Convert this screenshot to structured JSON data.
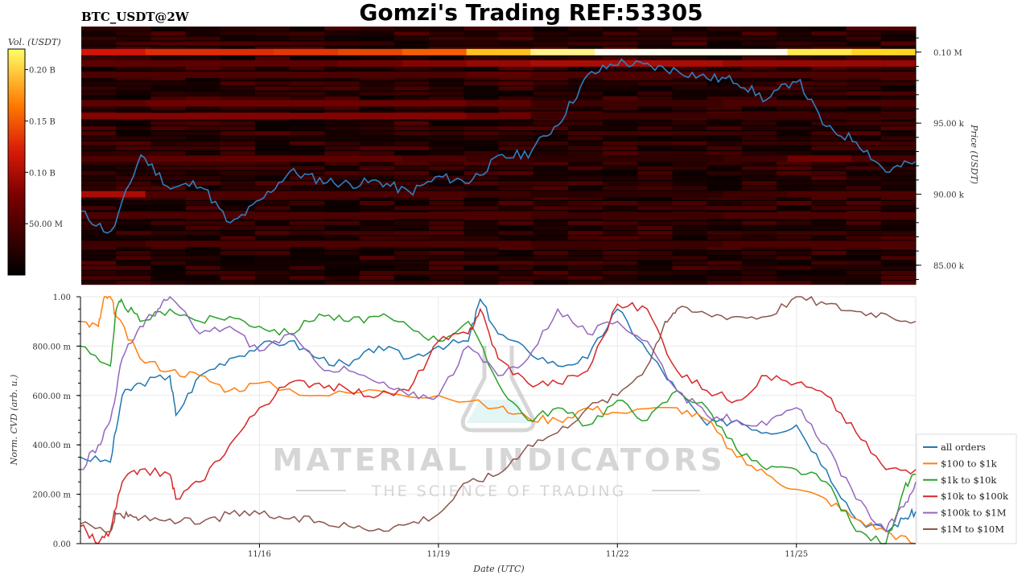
{
  "header": {
    "symbol_label": "BTC_USDT@2W",
    "title": "Gomzi's Trading REF:53305"
  },
  "colorbar": {
    "label": "Vol. (USDT)",
    "ticks": [
      "0.20 B",
      "0.15 B",
      "0.10 B",
      "50.00 M"
    ],
    "tick_values": [
      0.2,
      0.15,
      0.1,
      0.05
    ],
    "range": [
      0,
      0.22
    ]
  },
  "watermark": {
    "line1": "MATERIAL INDICATORS",
    "line2": "THE SCIENCE OF TRADING"
  },
  "colors": {
    "heat_low": "#000000",
    "heat_mid": "#c4000a",
    "heat_high": "#ffff55",
    "price_line": "#2f7fc1",
    "all_orders": "#1f77b4",
    "100_1k": "#ff7f0e",
    "1k_10k": "#2ca02c",
    "10k_100k": "#d62728",
    "100k_1M": "#9467bd",
    "1M_10M": "#8c564b"
  },
  "chart_data": [
    {
      "type": "heatmap",
      "name": "orderbook-heatmap",
      "ylabel": "Price (USDT)",
      "yticks": [
        "0.10 M",
        "95.00 k",
        "90.00 k",
        "85.00 k"
      ],
      "ytick_values": [
        100000,
        95000,
        90000,
        85000
      ],
      "ylim": [
        83800,
        101800
      ],
      "x_range": [
        "11/13",
        "11/27"
      ],
      "bands": [
        {
          "price": 100000,
          "level": [
            0.55,
            0.6,
            0.6,
            0.62,
            0.65,
            0.7,
            0.85,
            0.95,
            1.0,
            1.0,
            1.0,
            0.92,
            0.88
          ]
        },
        {
          "price": 99200,
          "level": [
            0.25,
            0.25,
            0.25,
            0.25,
            0.3,
            0.35,
            0.4,
            0.45,
            0.45,
            0.45,
            0.4,
            0.4,
            0.4
          ]
        },
        {
          "price": 98400,
          "level": [
            0.2,
            0.2,
            0.2,
            0.2,
            0.2,
            0.2,
            0.25,
            0.2,
            0.2,
            0.2,
            0.2,
            0.2,
            0.2
          ]
        },
        {
          "price": 96400,
          "level": [
            0.25,
            0.3,
            0.3,
            0.3,
            0.3,
            0.3,
            0.25,
            0.15,
            0.15,
            0.15,
            0.2,
            0.2,
            0.2
          ]
        },
        {
          "price": 95500,
          "level": [
            0.35,
            0.35,
            0.35,
            0.35,
            0.35,
            0.35,
            0.3,
            0.15,
            0.15,
            0.15,
            0.15,
            0.15,
            0.15
          ]
        },
        {
          "price": 92500,
          "level": [
            0.2,
            0.25,
            0.25,
            0.25,
            0.25,
            0.2,
            0.15,
            0.1,
            0.1,
            0.1,
            0.15,
            0.3,
            0.2
          ]
        },
        {
          "price": 90000,
          "level": [
            0.45,
            0.2,
            0.2,
            0.2,
            0.2,
            0.2,
            0.15,
            0.1,
            0.1,
            0.1,
            0.15,
            0.2,
            0.2
          ]
        },
        {
          "price": 88500,
          "level": [
            0.2,
            0.2,
            0.2,
            0.2,
            0.2,
            0.2,
            0.2,
            0.15,
            0.15,
            0.15,
            0.2,
            0.2,
            0.2
          ]
        },
        {
          "price": 86500,
          "level": [
            0.15,
            0.2,
            0.2,
            0.2,
            0.2,
            0.2,
            0.2,
            0.15,
            0.15,
            0.15,
            0.2,
            0.2,
            0.2
          ]
        }
      ],
      "series": [
        {
          "name": "price",
          "x": [
            "11/13",
            "11/13 12h",
            "11/14",
            "11/14 12h",
            "11/15",
            "11/15 12h",
            "11/16",
            "11/16 12h",
            "11/17",
            "11/17 12h",
            "11/18",
            "11/18 12h",
            "11/19",
            "11/19 12h",
            "11/20",
            "11/20 12h",
            "11/21",
            "11/21 12h",
            "11/22",
            "11/22 12h",
            "11/23",
            "11/23 12h",
            "11/24",
            "11/24 12h",
            "11/25",
            "11/25 12h",
            "11/26",
            "11/26 12h",
            "11/27"
          ],
          "values": [
            88700,
            87200,
            92800,
            90400,
            90800,
            87800,
            89500,
            91600,
            91000,
            90700,
            90900,
            90100,
            91200,
            90900,
            92500,
            92900,
            95000,
            98300,
            99300,
            99000,
            98700,
            98200,
            98000,
            96600,
            98200,
            94600,
            93800,
            91600,
            92300
          ]
        }
      ]
    },
    {
      "type": "line",
      "name": "norm-cvd",
      "xlabel": "Date (UTC)",
      "ylabel": "Norm. CVD (arb. u.)",
      "ylim": [
        0,
        1
      ],
      "yticks": [
        "0.00",
        "200.00 m",
        "400.00 m",
        "600.00 m",
        "800.00 m",
        "1.00"
      ],
      "ytick_values": [
        0,
        0.2,
        0.4,
        0.6,
        0.8,
        1.0
      ],
      "xticks": [
        "11/16",
        "11/19",
        "11/22",
        "11/25"
      ],
      "xtick_values": [
        3,
        6,
        9,
        12
      ],
      "xlim": [
        0,
        14
      ],
      "legend_position": "right",
      "series": [
        {
          "name": "all orders",
          "key": "all_orders",
          "x": [
            0,
            0.5,
            0.7,
            1,
            1.5,
            1.6,
            2,
            2.5,
            3,
            3.5,
            4,
            4.5,
            5,
            5.5,
            6,
            6.5,
            6.7,
            7,
            7.5,
            8,
            8.5,
            9,
            9.5,
            10,
            10.5,
            11,
            11.5,
            12,
            12.5,
            13,
            13.5,
            13.8,
            14
          ],
          "values": [
            0.35,
            0.33,
            0.6,
            0.65,
            0.68,
            0.52,
            0.68,
            0.75,
            0.8,
            0.82,
            0.75,
            0.72,
            0.8,
            0.75,
            0.8,
            0.82,
            0.99,
            0.85,
            0.78,
            0.72,
            0.75,
            0.95,
            0.78,
            0.62,
            0.48,
            0.5,
            0.45,
            0.48,
            0.3,
            0.1,
            0.05,
            0.1,
            0.13
          ]
        },
        {
          "name": "$100 to $1k",
          "key": "100_1k",
          "x": [
            0,
            0.3,
            0.4,
            0.5,
            0.6,
            1,
            1.5,
            2,
            2.5,
            3,
            4,
            5,
            6,
            7,
            7.5,
            8,
            8.5,
            9,
            10,
            10.5,
            11,
            11.5,
            12,
            12.5,
            13,
            13.5,
            14
          ],
          "values": [
            0.9,
            0.88,
            1.0,
            1.0,
            0.92,
            0.75,
            0.7,
            0.68,
            0.62,
            0.65,
            0.6,
            0.62,
            0.6,
            0.55,
            0.51,
            0.5,
            0.55,
            0.53,
            0.55,
            0.5,
            0.35,
            0.28,
            0.22,
            0.18,
            0.1,
            0.05,
            0.0
          ]
        },
        {
          "name": "$1k to $10k",
          "key": "1k_10k",
          "x": [
            0,
            0.5,
            0.6,
            0.7,
            1,
            1.5,
            2,
            2.5,
            3,
            3.5,
            4,
            4.5,
            5,
            5.5,
            6,
            6.5,
            7,
            7.5,
            8,
            8.5,
            9,
            9.5,
            10,
            10.5,
            11,
            11.5,
            12,
            12.5,
            13,
            13.5,
            13.8,
            14
          ],
          "values": [
            0.8,
            0.72,
            0.95,
            0.98,
            0.9,
            0.95,
            0.9,
            0.92,
            0.88,
            0.85,
            0.93,
            0.9,
            0.92,
            0.88,
            0.82,
            0.9,
            0.65,
            0.5,
            0.55,
            0.48,
            0.58,
            0.5,
            0.62,
            0.55,
            0.38,
            0.3,
            0.3,
            0.25,
            0.05,
            0.0,
            0.22,
            0.28
          ]
        },
        {
          "name": "$10k to $100k",
          "key": "10k_100k",
          "x": [
            0,
            0.3,
            0.5,
            0.7,
            1,
            1.5,
            1.6,
            2,
            2.5,
            3,
            3.5,
            4,
            4.5,
            5,
            5.5,
            6,
            6.5,
            6.7,
            7,
            7.5,
            8,
            8.5,
            9,
            9.5,
            10,
            10.5,
            11,
            11.5,
            12,
            12.5,
            13,
            13.5,
            14
          ],
          "values": [
            0.07,
            0.0,
            0.05,
            0.25,
            0.3,
            0.28,
            0.18,
            0.25,
            0.4,
            0.55,
            0.65,
            0.65,
            0.62,
            0.6,
            0.62,
            0.82,
            0.85,
            0.95,
            0.75,
            0.65,
            0.65,
            0.7,
            0.97,
            0.95,
            0.7,
            0.62,
            0.58,
            0.68,
            0.65,
            0.6,
            0.45,
            0.3,
            0.3
          ]
        },
        {
          "name": "$100k to $1M",
          "key": "100k_1M",
          "x": [
            0,
            0.3,
            0.5,
            0.7,
            1,
            1.3,
            1.5,
            2,
            2.5,
            3,
            3.5,
            4,
            4.5,
            5,
            5.5,
            6,
            6.5,
            7,
            7.5,
            8,
            8.5,
            9,
            9.5,
            10,
            10.5,
            11,
            11.5,
            12,
            12.5,
            13,
            13.5,
            13.8,
            14
          ],
          "values": [
            0.3,
            0.4,
            0.5,
            0.75,
            0.88,
            0.95,
            1.0,
            0.85,
            0.88,
            0.78,
            0.85,
            0.72,
            0.7,
            0.65,
            0.6,
            0.6,
            0.8,
            0.68,
            0.75,
            0.95,
            0.85,
            0.9,
            0.82,
            0.62,
            0.52,
            0.5,
            0.48,
            0.55,
            0.4,
            0.18,
            0.05,
            0.15,
            0.25
          ]
        },
        {
          "name": "$1M to $10M",
          "key": "1M_10M",
          "x": [
            0,
            0.5,
            0.6,
            0.8,
            1,
            1.5,
            2,
            2.5,
            3,
            3.5,
            4,
            4.5,
            5,
            5.5,
            6,
            6.5,
            7,
            7.5,
            8,
            8.5,
            9,
            9.5,
            9.8,
            10,
            10.5,
            11,
            11.5,
            12,
            12.5,
            13,
            13.5,
            14
          ],
          "values": [
            0.08,
            0.05,
            0.12,
            0.11,
            0.1,
            0.1,
            0.08,
            0.12,
            0.12,
            0.1,
            0.09,
            0.07,
            0.06,
            0.08,
            0.12,
            0.25,
            0.28,
            0.4,
            0.45,
            0.55,
            0.6,
            0.72,
            0.9,
            0.95,
            0.93,
            0.92,
            0.92,
            1.0,
            0.97,
            0.94,
            0.93,
            0.9
          ]
        }
      ]
    }
  ]
}
